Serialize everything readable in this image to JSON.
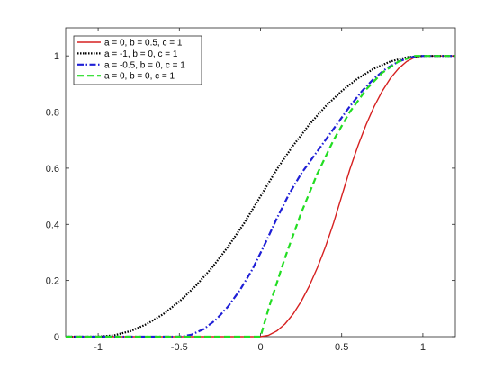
{
  "chart_data": {
    "type": "line",
    "title": "",
    "xlabel": "",
    "ylabel": "",
    "xlim": [
      -1.2,
      1.2
    ],
    "ylim": [
      0,
      1.1
    ],
    "xticks": [
      -1,
      -0.5,
      0,
      0.5,
      1
    ],
    "xtick_labels": [
      "-1",
      "-0.5",
      "0",
      "0.5",
      "1"
    ],
    "yticks": [
      0,
      0.2,
      0.4,
      0.6,
      0.8,
      1
    ],
    "ytick_labels": [
      "0",
      "0.2",
      "0.4",
      "0.6",
      "0.8",
      "1"
    ],
    "grid": false,
    "legend": "top-left",
    "series": [
      {
        "name": "a = 0, b = 0.5, c = 1",
        "color": "#d62020",
        "style": "solid",
        "x": [
          -1.2,
          0.0,
          0.05,
          0.1,
          0.15,
          0.2,
          0.25,
          0.3,
          0.35,
          0.4,
          0.45,
          0.5,
          0.55,
          0.6,
          0.65,
          0.7,
          0.75,
          0.8,
          0.85,
          0.9,
          0.95,
          1.0,
          1.2
        ],
        "y": [
          0,
          0,
          0.005,
          0.02,
          0.045,
          0.08,
          0.125,
          0.18,
          0.245,
          0.32,
          0.405,
          0.5,
          0.595,
          0.68,
          0.755,
          0.82,
          0.875,
          0.92,
          0.955,
          0.98,
          0.995,
          1,
          1
        ]
      },
      {
        "name": "a = -1, b = 0, c = 1",
        "color": "#000000",
        "style": "dotted",
        "x": [
          -1.2,
          -1.0,
          -0.9,
          -0.8,
          -0.7,
          -0.6,
          -0.5,
          -0.4,
          -0.3,
          -0.2,
          -0.1,
          0.0,
          0.1,
          0.2,
          0.3,
          0.4,
          0.5,
          0.6,
          0.7,
          0.8,
          0.9,
          1.0,
          1.2
        ],
        "y": [
          0,
          0,
          0.005,
          0.02,
          0.045,
          0.08,
          0.125,
          0.18,
          0.245,
          0.32,
          0.405,
          0.5,
          0.595,
          0.68,
          0.755,
          0.82,
          0.875,
          0.92,
          0.955,
          0.98,
          0.995,
          1,
          1
        ]
      },
      {
        "name": "a = -0.5, b = 0, c = 1",
        "color": "#1f1fd6",
        "style": "dashdot",
        "x": [
          -1.2,
          -0.5,
          -0.425,
          -0.35,
          -0.275,
          -0.2,
          -0.125,
          -0.05,
          0.025,
          0.1,
          0.175,
          0.25,
          0.325,
          0.4,
          0.475,
          0.55,
          0.625,
          0.7,
          0.775,
          0.85,
          0.925,
          1.0,
          1.2
        ],
        "y": [
          0,
          0,
          0.007,
          0.027,
          0.06,
          0.107,
          0.167,
          0.24,
          0.327,
          0.42,
          0.507,
          0.58,
          0.64,
          0.7,
          0.76,
          0.82,
          0.875,
          0.92,
          0.955,
          0.98,
          0.995,
          1,
          1
        ]
      },
      {
        "name": "a = 0, b = 0, c = 1",
        "color": "#22dd22",
        "style": "dashed",
        "x": [
          -1.2,
          0.0,
          0.05,
          0.1,
          0.15,
          0.2,
          0.25,
          0.3,
          0.35,
          0.4,
          0.45,
          0.5,
          0.55,
          0.6,
          0.65,
          0.7,
          0.75,
          0.8,
          0.85,
          0.9,
          0.95,
          1.0,
          1.2
        ],
        "y": [
          0,
          0,
          0.1,
          0.19,
          0.28,
          0.36,
          0.44,
          0.51,
          0.58,
          0.64,
          0.7,
          0.75,
          0.8,
          0.84,
          0.88,
          0.91,
          0.94,
          0.96,
          0.98,
          0.99,
          1,
          1,
          1
        ]
      }
    ]
  }
}
